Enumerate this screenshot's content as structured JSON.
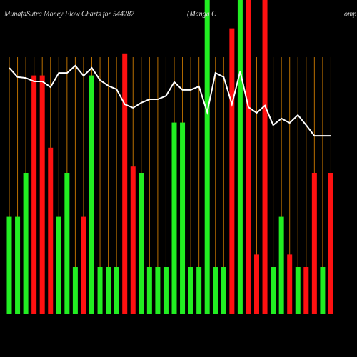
{
  "chart_data": {
    "type": "bar",
    "title": "MunafaSutra  Money Flow  Charts for 544287",
    "subtitle": "(Manga C",
    "subtitle_tail": "omp",
    "categories": [
      null,
      null,
      null,
      null,
      null,
      null,
      null,
      null,
      null,
      null,
      null,
      null,
      null,
      null,
      null,
      null,
      null,
      null,
      null,
      null,
      null,
      null,
      null,
      null,
      null,
      null,
      null,
      null,
      null,
      null,
      null,
      null,
      null,
      null,
      null,
      null,
      null,
      null,
      null,
      null
    ],
    "values": [
      31,
      31,
      45,
      76,
      76,
      53,
      31,
      45,
      15,
      31,
      76,
      15,
      15,
      15,
      83,
      47,
      45,
      15,
      15,
      15,
      61,
      61,
      15,
      15,
      100,
      15,
      15,
      91,
      100,
      100,
      19,
      100,
      15,
      31,
      19,
      15,
      15,
      45,
      15,
      45
    ],
    "colors": [
      "#22ee22",
      "#22ee22",
      "#22ee22",
      "#ff1111",
      "#ff1111",
      "#ff1111",
      "#22ee22",
      "#22ee22",
      "#22ee22",
      "#ff1111",
      "#22ee22",
      "#22ee22",
      "#22ee22",
      "#22ee22",
      "#ff1111",
      "#ff1111",
      "#22ee22",
      "#22ee22",
      "#22ee22",
      "#22ee22",
      "#22ee22",
      "#22ee22",
      "#22ee22",
      "#22ee22",
      "#22ee22",
      "#22ee22",
      "#22ee22",
      "#ff1111",
      "#22ee22",
      "#ff1111",
      "#ff1111",
      "#ff1111",
      "#22ee22",
      "#22ee22",
      "#ff1111",
      "#22ee22",
      "#ff1111",
      "#ff1111",
      "#22ee22",
      "#ff1111"
    ],
    "ylim": [
      0,
      100
    ],
    "line": {
      "color": "#ffffff",
      "values": [
        78.4,
        75.5,
        75.2,
        74.1,
        74.1,
        72.3,
        76.8,
        76.8,
        79.1,
        75.9,
        78.4,
        74.5,
        72.7,
        71.6,
        66.8,
        65.7,
        67.3,
        68.4,
        68.4,
        69.5,
        73.9,
        71.4,
        71.4,
        72.5,
        64.3,
        76.8,
        75.5,
        66.8,
        77.3,
        65.9,
        64.1,
        66.4,
        60.2,
        62.3,
        60.9,
        63.4,
        60.2,
        56.8,
        56.8,
        56.8
      ]
    }
  }
}
